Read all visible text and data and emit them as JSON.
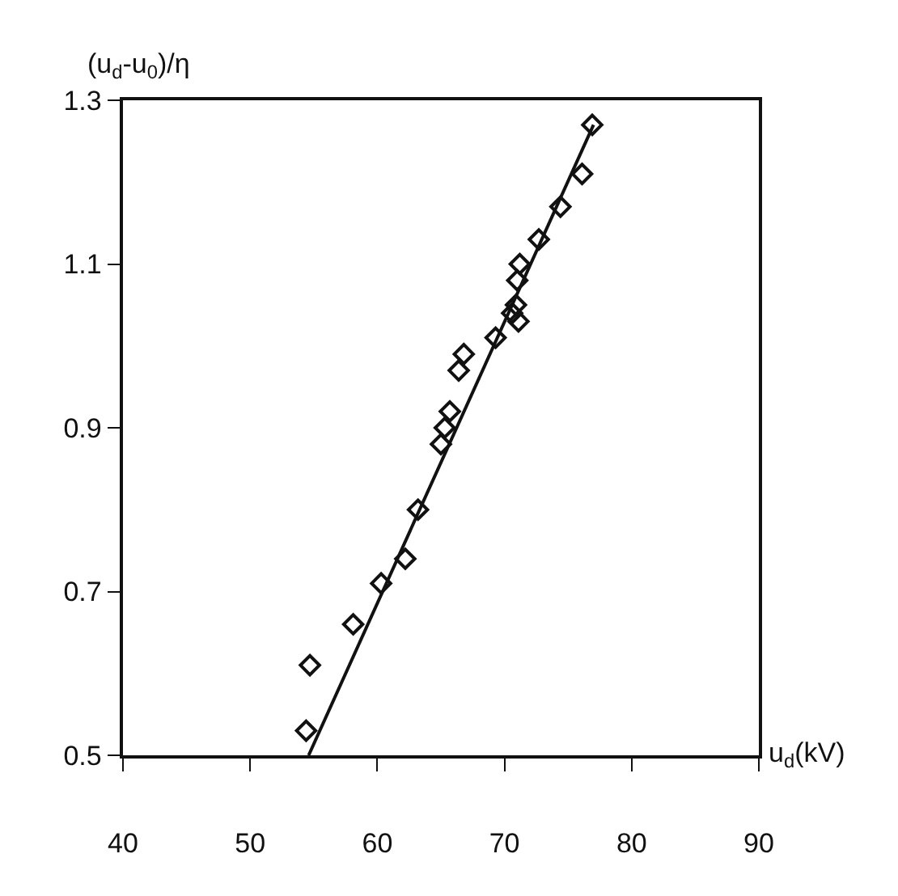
{
  "chart_data": {
    "type": "scatter",
    "xlabel": "u$_{d}$(kV)",
    "ylabel": "(u$_{d}$-u$_{0}$)/η",
    "xlim": [
      40,
      90
    ],
    "xticks": [
      40,
      50,
      60,
      70,
      80,
      90
    ],
    "ylim": [
      0.5,
      1.3
    ],
    "yticks": [
      0.5,
      0.7,
      0.9,
      1.1,
      1.3
    ],
    "grid": false,
    "marker": "diamond",
    "series": [
      {
        "color": "#111111",
        "x": [
          54.4,
          54.7,
          58.1,
          60.3,
          62.2,
          63.2,
          65.0,
          65.3,
          65.7,
          66.4,
          66.8,
          69.3,
          71.1,
          70.6,
          70.9,
          71.0,
          71.2,
          72.7,
          74.4,
          76.1,
          76.9
        ],
        "values": [
          0.53,
          0.61,
          0.66,
          0.71,
          0.74,
          0.8,
          0.88,
          0.9,
          0.92,
          0.97,
          0.99,
          1.01,
          1.03,
          1.04,
          1.05,
          1.08,
          1.1,
          1.13,
          1.17,
          1.21,
          1.27
        ]
      },
      {
        "type": "line",
        "color": "#111111",
        "marker": "none",
        "line_style": "solid",
        "x": [
          54.6,
          77.0
        ],
        "values": [
          0.5,
          1.27
        ]
      }
    ]
  }
}
